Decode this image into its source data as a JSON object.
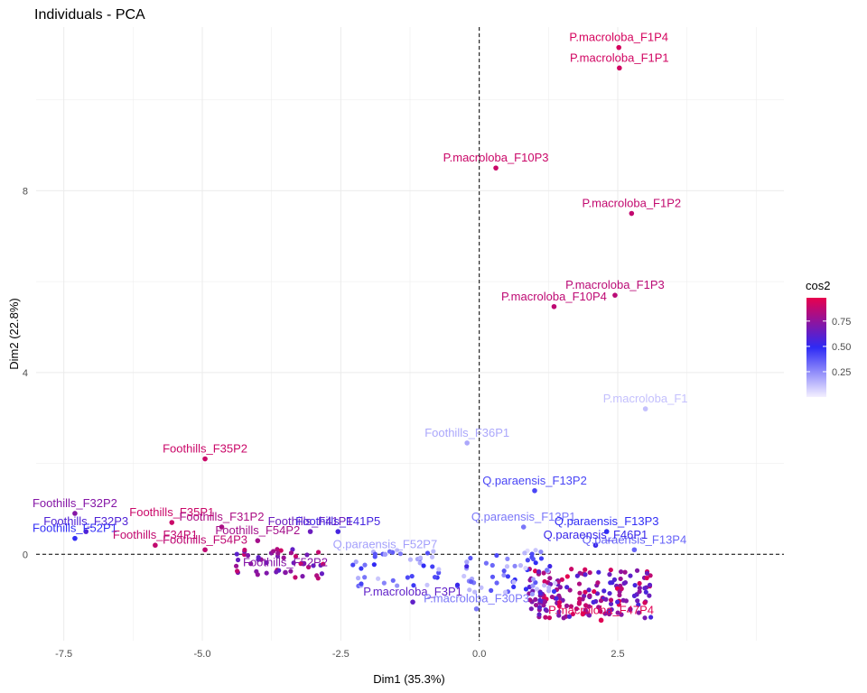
{
  "chart_data": {
    "type": "scatter",
    "title": "Individuals - PCA",
    "xlabel": "Dim1 (35.3%)",
    "ylabel": "Dim2 (22.8%)",
    "xlim": [
      -8.0,
      5.5
    ],
    "ylim": [
      -1.9,
      11.6
    ],
    "x_ticks": [
      -7.5,
      -5.0,
      -2.5,
      0.0,
      2.5
    ],
    "x_tick_labels": [
      "-7.5",
      "-5.0",
      "-2.5",
      "0.0",
      "2.5"
    ],
    "y_ticks": [
      0,
      4,
      8
    ],
    "y_tick_labels": [
      "0",
      "4",
      "8"
    ],
    "grid": true,
    "reference_lines": {
      "x": 0,
      "y": 0,
      "style": "dashed"
    },
    "color_scale": {
      "variable": "cos2",
      "low_color": "#f4f0ff",
      "mid_color": "#2e2af5",
      "high_color": "#e8004d",
      "breaks": [
        0.25,
        0.5,
        0.75
      ],
      "break_labels": [
        "0.25",
        "0.50",
        "0.75"
      ],
      "range": [
        0.0,
        0.98
      ]
    },
    "legend_position": "right",
    "points": [
      {
        "label": "P.macroloba_F1P4",
        "x": 2.52,
        "y": 11.15,
        "cos2": 0.93
      },
      {
        "label": "P.macroloba_F1P1",
        "x": 2.53,
        "y": 10.7,
        "cos2": 0.92
      },
      {
        "label": "P.macroloba_F10P3",
        "x": 0.3,
        "y": 8.5,
        "cos2": 0.9
      },
      {
        "label": "P.macroloba_F1P2",
        "x": 2.75,
        "y": 7.5,
        "cos2": 0.88
      },
      {
        "label": "P.macroloba_F1P3",
        "x": 2.45,
        "y": 5.7,
        "cos2": 0.86
      },
      {
        "label": "P.macroloba_F10P4",
        "x": 1.35,
        "y": 5.45,
        "cos2": 0.87
      },
      {
        "label": "P.macroloba_F1",
        "x": 3.0,
        "y": 3.2,
        "cos2": 0.12
      },
      {
        "label": "Foothills_F36P1",
        "x": -0.22,
        "y": 2.45,
        "cos2": 0.18
      },
      {
        "label": "Foothills_F35P2",
        "x": -4.95,
        "y": 2.1,
        "cos2": 0.9
      },
      {
        "label": "Q.paraensis_F13P2",
        "x": 1.0,
        "y": 1.4,
        "cos2": 0.42
      },
      {
        "label": "Foothills_F32P2",
        "x": -7.3,
        "y": 0.9,
        "cos2": 0.72
      },
      {
        "label": "Foothills_F32P3",
        "x": -7.1,
        "y": 0.5,
        "cos2": 0.58
      },
      {
        "label": "Foothills_F52P1",
        "x": -7.3,
        "y": 0.35,
        "cos2": 0.48
      },
      {
        "label": "Foothills_F35P1",
        "x": -5.55,
        "y": 0.7,
        "cos2": 0.9
      },
      {
        "label": "Foothills_F31P2",
        "x": -4.65,
        "y": 0.6,
        "cos2": 0.82
      },
      {
        "label": "Foothills_F34P1",
        "x": -5.85,
        "y": 0.2,
        "cos2": 0.88
      },
      {
        "label": "Foothills_F54P3",
        "x": -4.95,
        "y": 0.1,
        "cos2": 0.87
      },
      {
        "label": "Foothills_F54P2",
        "x": -4.0,
        "y": 0.3,
        "cos2": 0.8
      },
      {
        "label": "Foothills_F41P1",
        "x": -3.05,
        "y": 0.5,
        "cos2": 0.65
      },
      {
        "label": "Foothills_F41P5",
        "x": -2.55,
        "y": 0.5,
        "cos2": 0.55
      },
      {
        "label": "Foothills_F52P2",
        "x": -3.5,
        "y": -0.4,
        "cos2": 0.72
      },
      {
        "label": "Q.paraensis_F52P7",
        "x": -1.7,
        "y": 0.0,
        "cos2": 0.2
      },
      {
        "label": "Q.paraensis_F13P1",
        "x": 0.8,
        "y": 0.6,
        "cos2": 0.3
      },
      {
        "label": "Q.paraensis_F13P3",
        "x": 2.3,
        "y": 0.5,
        "cos2": 0.48
      },
      {
        "label": "Q.paraensis_F13P4",
        "x": 2.8,
        "y": 0.1,
        "cos2": 0.35
      },
      {
        "label": "Q.paraensis_F46P1",
        "x": 2.1,
        "y": 0.2,
        "cos2": 0.52
      },
      {
        "label": "P.macroloba_F3P1",
        "x": -1.2,
        "y": -1.05,
        "cos2": 0.62
      },
      {
        "label": "P.macroloba_F30P3",
        "x": -0.05,
        "y": -1.2,
        "cos2": 0.3
      },
      {
        "label": "P.macroloba_F47P4",
        "x": 2.2,
        "y": -1.45,
        "cos2": 0.96
      }
    ]
  }
}
